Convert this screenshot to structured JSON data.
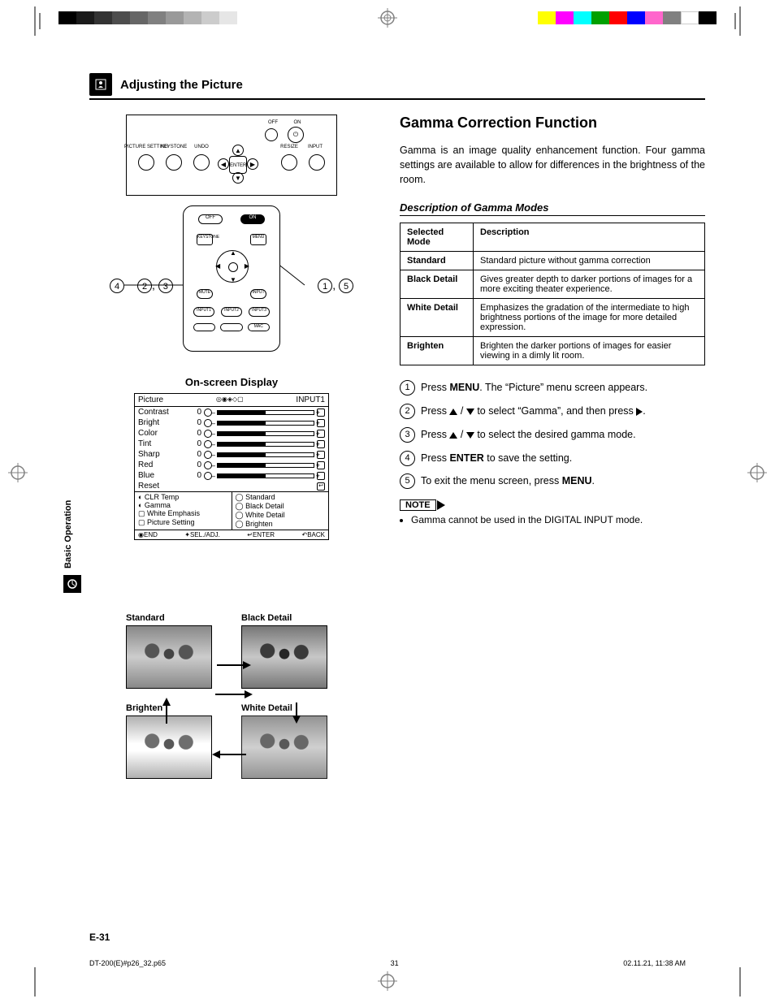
{
  "grayBars": [
    "#000000",
    "#1a1a1a",
    "#333333",
    "#4d4d4d",
    "#666666",
    "#808080",
    "#999999",
    "#b3b3b3",
    "#cccccc",
    "#e6e6e6"
  ],
  "colorBars": [
    "#ffff00",
    "#ff00ff",
    "#00ffff",
    "#00a000",
    "#ff0000",
    "#0000ff",
    "#ff66cc",
    "#808080",
    "#ffffff",
    "#000000"
  ],
  "chapter": {
    "title": "Adjusting the Picture"
  },
  "sideTab": "Basic Operation",
  "gamma": {
    "title": "Gamma Correction Function",
    "intro": "Gamma is an image quality enhancement function. Four gamma settings are available to allow for differences in the brightness of the room.",
    "modesHeading": "Description of Gamma Modes",
    "tableHead": {
      "col1": "Selected Mode",
      "col2": "Description"
    },
    "modes": [
      {
        "name": "Standard",
        "desc": "Standard picture without gamma correction"
      },
      {
        "name": "Black Detail",
        "desc": "Gives greater depth to darker portions of images for a more exciting theater experience."
      },
      {
        "name": "White Detail",
        "desc": "Emphasizes the gradation of the intermediate to high brightness portions of the image for more detailed expression."
      },
      {
        "name": "Brighten",
        "desc": "Brighten the darker portions of images for easier viewing in a dimly lit room."
      }
    ],
    "steps": [
      {
        "pre": "Press ",
        "bold": "MENU",
        "post": ". The “Picture” menu screen appears."
      },
      {
        "pre": "Press ",
        "arrows": "updown",
        "post": " to select “Gamma”, and then press ",
        "arrow2": "right",
        "post2": "."
      },
      {
        "pre": "Press ",
        "arrows": "updown",
        "post": " to select the desired gamma mode."
      },
      {
        "pre": "Press ",
        "bold": "ENTER",
        "post": " to save the setting."
      },
      {
        "pre": "To exit the menu screen, press ",
        "bold": "MENU",
        "post": "."
      }
    ],
    "noteLabel": "NOTE",
    "noteText": "Gamma cannot be used in the DIGITAL INPUT mode."
  },
  "controlPanel": {
    "buttons": [
      "PICTURE SETTING",
      "KEYSTONE",
      "UNDO",
      "RESIZE",
      "INPUT"
    ],
    "offOn": {
      "off": "OFF",
      "on": "ON"
    },
    "enter": "ENTER"
  },
  "remote": {
    "callLeft": [
      {
        "n": "4"
      }
    ],
    "callLeftMid": [
      {
        "n": "2"
      },
      {
        "t": ","
      },
      {
        "n": "3"
      }
    ],
    "callRight": [
      {
        "n": "1"
      },
      {
        "t": ","
      },
      {
        "n": "5"
      }
    ],
    "btns": [
      "OFF",
      "ON",
      "KEYSTONE",
      "MENU",
      "MUTE",
      "INPUT",
      "INPUT1",
      "INPUT2",
      "INPUT3",
      "MAC"
    ]
  },
  "osd": {
    "title": "On-screen Display",
    "header": {
      "name": "Picture",
      "input": "INPUT1"
    },
    "rows": [
      {
        "name": "Contrast",
        "val": "0"
      },
      {
        "name": "Bright",
        "val": "0"
      },
      {
        "name": "Color",
        "val": "0"
      },
      {
        "name": "Tint",
        "val": "0"
      },
      {
        "name": "Sharp",
        "val": "0"
      },
      {
        "name": "Red",
        "val": "0"
      },
      {
        "name": "Blue",
        "val": "0"
      }
    ],
    "reset": "Reset",
    "subLeft": [
      "CLR Temp",
      "Gamma",
      "White Emphasis",
      "Picture Setting"
    ],
    "subRight": [
      "Standard",
      "Black Detail",
      "White Detail",
      "Brighten"
    ],
    "footer": [
      "END",
      "SEL./ADJ.",
      "ENTER",
      "BACK"
    ]
  },
  "thumbs": {
    "labels": [
      "Standard",
      "Black Detail",
      "Brighten",
      "White Detail"
    ]
  },
  "pageNumber": "E-31",
  "footer": {
    "file": "DT-200(E)#p26_32.p65",
    "pg": "31",
    "ts": "02.11.21, 11:38 AM"
  }
}
